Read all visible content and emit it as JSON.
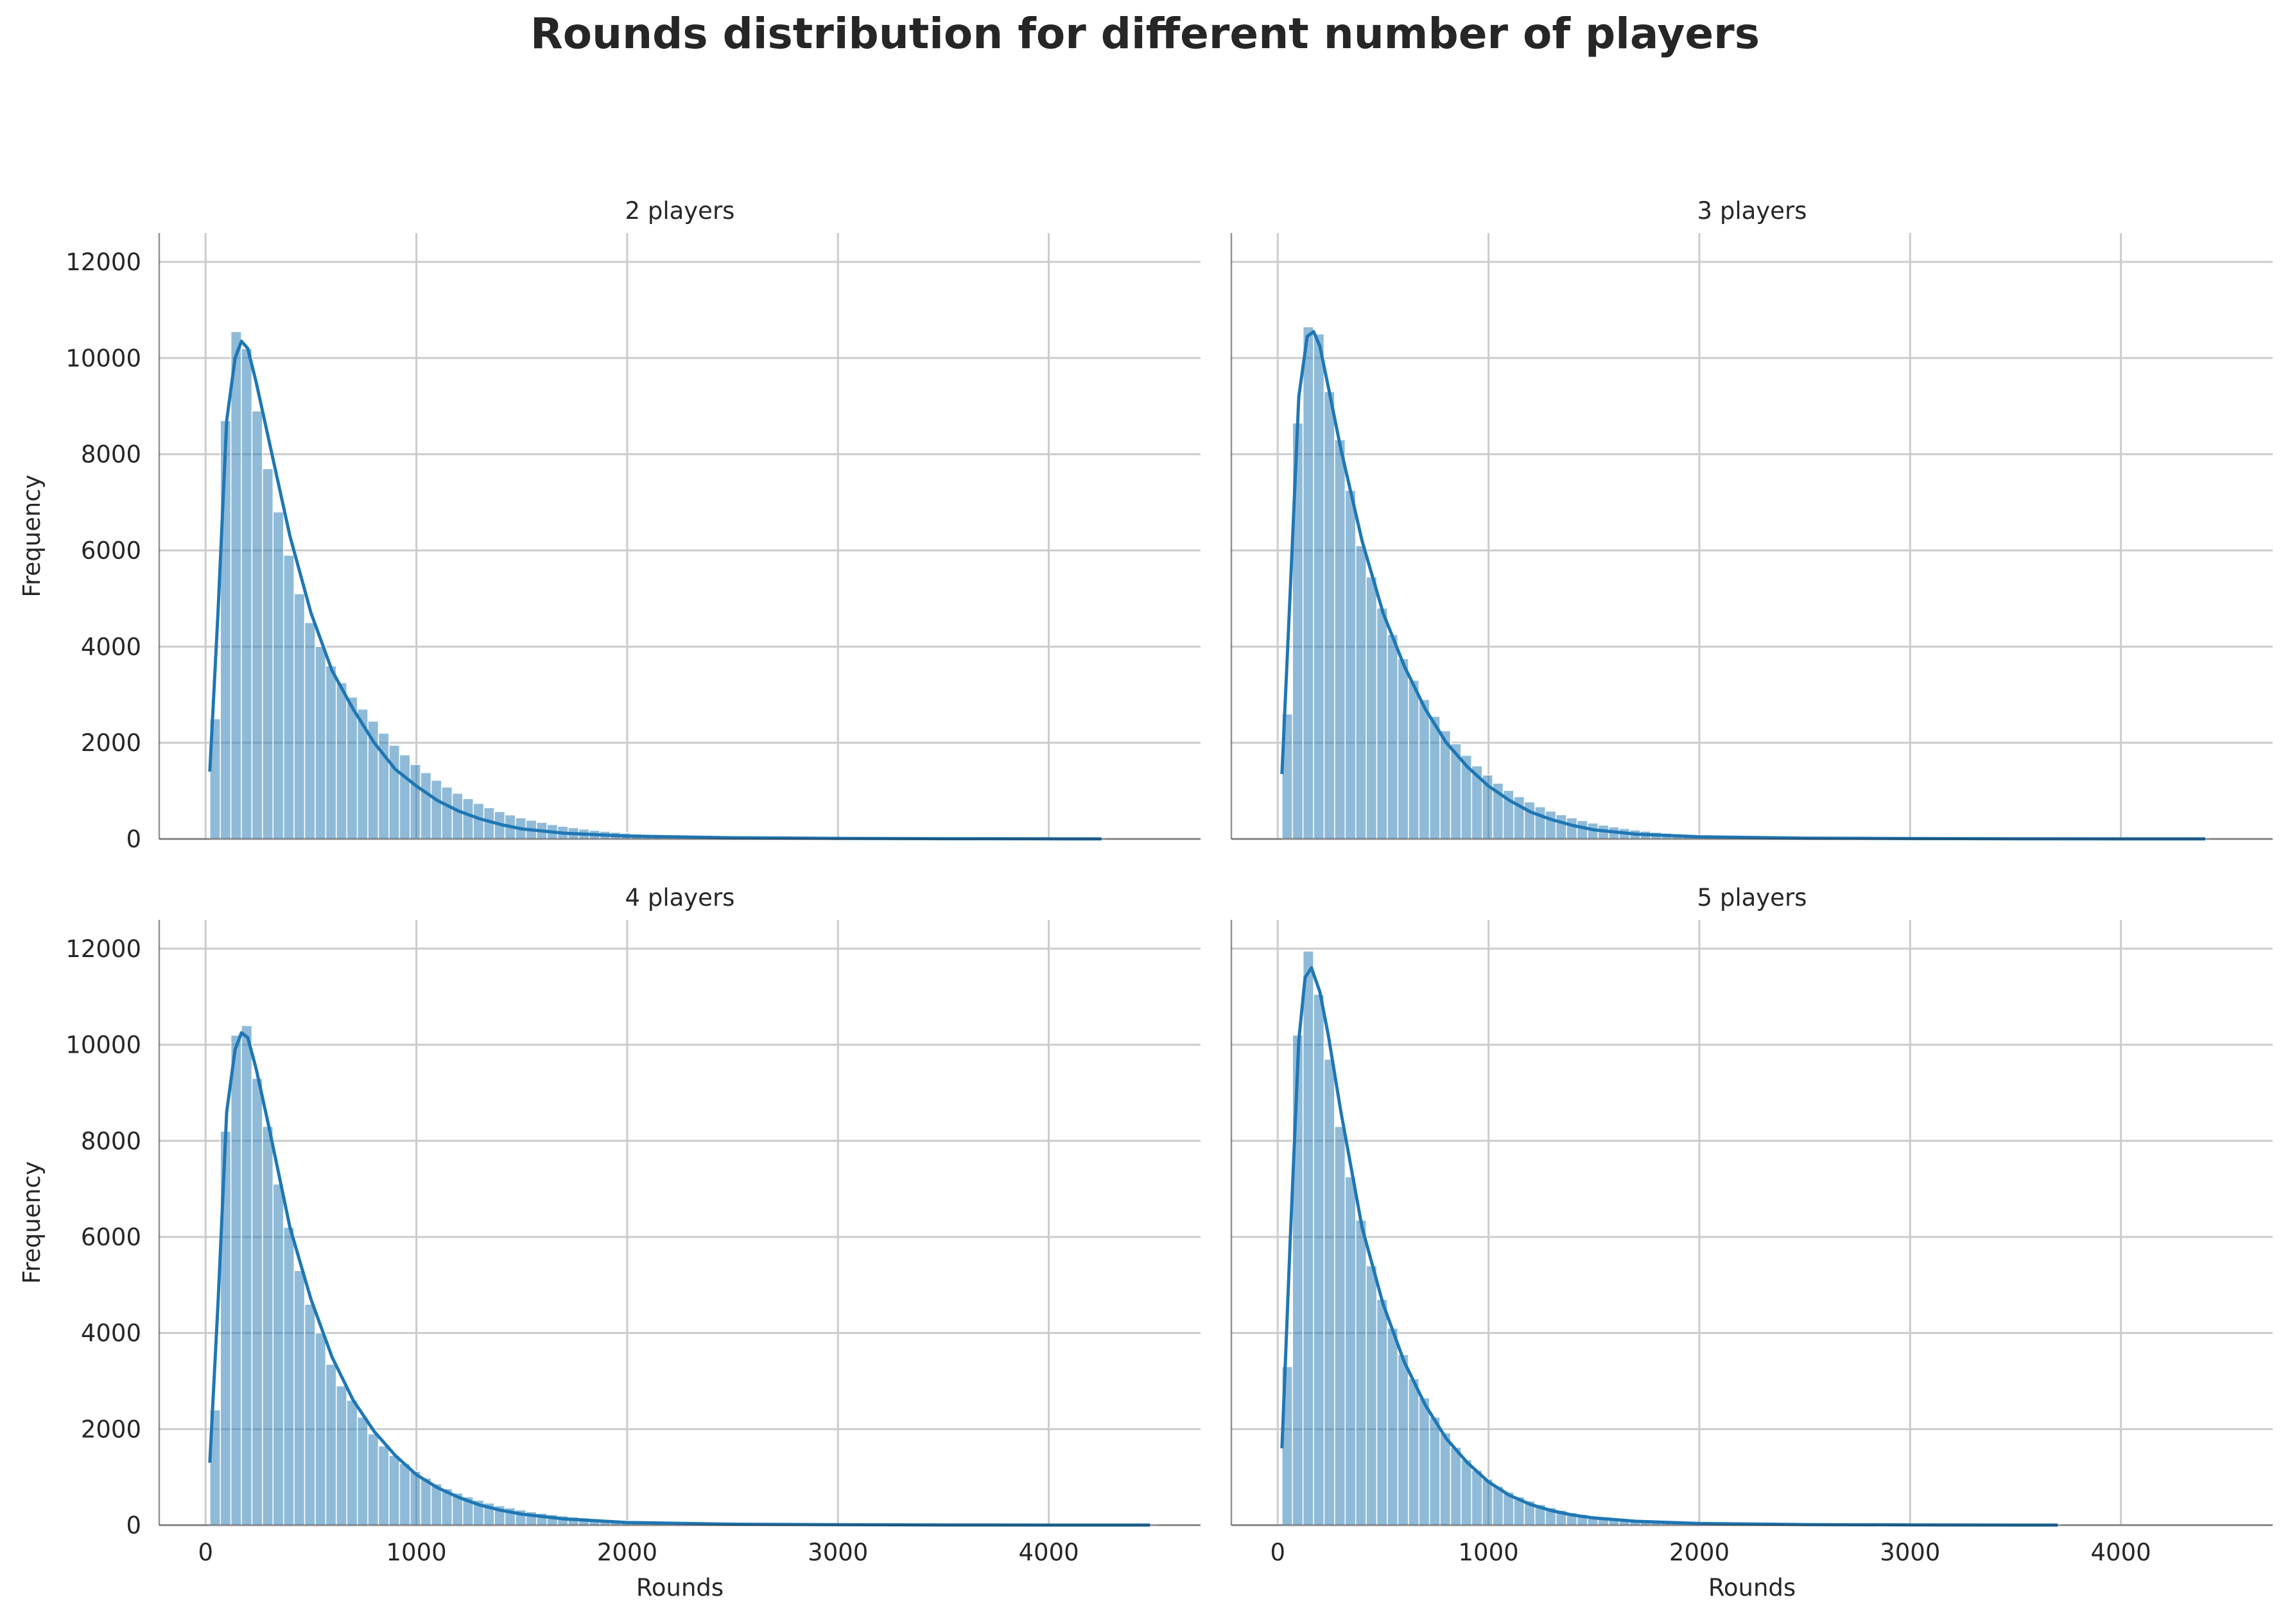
{
  "figure": {
    "title": "Rounds distribution for different number of players"
  },
  "colors": {
    "bar_fill": "#1f77b4",
    "bar_opacity": 0.5,
    "kde_line": "#1f77b4",
    "grid": "#cccccc",
    "axis": "#262626",
    "text": "#262626"
  },
  "chart_data": [
    {
      "type": "bar",
      "title": "2 players",
      "xlabel": "",
      "ylabel": "Frequency",
      "xlim": [
        -220,
        4720
      ],
      "ylim": [
        0,
        12600
      ],
      "xticks": [
        0,
        1000,
        2000,
        3000,
        4000
      ],
      "yticks": [
        0,
        2000,
        4000,
        6000,
        8000,
        10000,
        12000
      ],
      "grid": true,
      "bin_start": 20,
      "bin_width": 50,
      "bin_count": 85,
      "values": [
        2500,
        8700,
        10550,
        10200,
        8900,
        7700,
        6800,
        5900,
        5100,
        4500,
        4000,
        3600,
        3250,
        2950,
        2700,
        2450,
        2200,
        1950,
        1750,
        1550,
        1380,
        1220,
        1080,
        950,
        840,
        740,
        650,
        570,
        500,
        440,
        390,
        345,
        300,
        265,
        235,
        205,
        180,
        160,
        140,
        122,
        107,
        94,
        82,
        72,
        63,
        55,
        48,
        42,
        37,
        33,
        29,
        26,
        23,
        20,
        18,
        16,
        14,
        12,
        11,
        10,
        9,
        8,
        7,
        6,
        6,
        5,
        5,
        4,
        4,
        3,
        3,
        3,
        3,
        2,
        2,
        2,
        2,
        2,
        1,
        1,
        1,
        1,
        1,
        1,
        1
      ],
      "kde": {
        "x": [
          20,
          60,
          100,
          140,
          170,
          200,
          240,
          300,
          400,
          500,
          600,
          700,
          800,
          900,
          1000,
          1100,
          1200,
          1300,
          1400,
          1500,
          1700,
          2000,
          2500,
          3000,
          3500,
          4000,
          4250
        ],
        "y": [
          1400,
          4800,
          8700,
          10000,
          10350,
          10200,
          9500,
          8300,
          6300,
          4700,
          3500,
          2700,
          2000,
          1450,
          1100,
          800,
          580,
          420,
          300,
          210,
          120,
          60,
          25,
          12,
          6,
          3,
          2
        ]
      }
    },
    {
      "type": "bar",
      "title": "3 players",
      "xlabel": "",
      "ylabel": "",
      "xlim": [
        -220,
        4720
      ],
      "ylim": [
        0,
        12600
      ],
      "xticks": [
        0,
        1000,
        2000,
        3000,
        4000
      ],
      "yticks": [
        0,
        2000,
        4000,
        6000,
        8000,
        10000,
        12000
      ],
      "grid": true,
      "bin_start": 20,
      "bin_width": 50,
      "bin_count": 88,
      "values": [
        2600,
        8650,
        10650,
        10500,
        9300,
        8300,
        7250,
        6100,
        5450,
        4800,
        4250,
        3750,
        3300,
        2900,
        2550,
        2250,
        1980,
        1740,
        1520,
        1330,
        1160,
        1010,
        880,
        770,
        670,
        580,
        505,
        440,
        382,
        332,
        288,
        250,
        217,
        188,
        163,
        141,
        122,
        106,
        92,
        80,
        69,
        60,
        52,
        45,
        39,
        34,
        29,
        25,
        22,
        19,
        17,
        15,
        13,
        11,
        10,
        9,
        8,
        7,
        6,
        5,
        5,
        4,
        4,
        3,
        3,
        3,
        2,
        2,
        2,
        2,
        2,
        1,
        1,
        1,
        1,
        1,
        1,
        1,
        1,
        1,
        1,
        1,
        1,
        1,
        1,
        1,
        1,
        1
      ],
      "kde": {
        "x": [
          20,
          60,
          100,
          140,
          170,
          200,
          240,
          300,
          400,
          500,
          600,
          700,
          800,
          900,
          1000,
          1100,
          1200,
          1300,
          1400,
          1500,
          1700,
          2000,
          2500,
          3000,
          3500,
          4000,
          4400
        ],
        "y": [
          1350,
          5200,
          9200,
          10450,
          10550,
          10250,
          9400,
          8100,
          6200,
          4700,
          3600,
          2700,
          2000,
          1500,
          1100,
          800,
          560,
          400,
          280,
          190,
          100,
          45,
          18,
          8,
          4,
          2,
          1
        ]
      }
    },
    {
      "type": "bar",
      "title": "4 players",
      "xlabel": "Rounds",
      "ylabel": "Frequency",
      "xlim": [
        -220,
        4720
      ],
      "ylim": [
        0,
        12600
      ],
      "xticks": [
        0,
        1000,
        2000,
        3000,
        4000
      ],
      "yticks": [
        0,
        2000,
        4000,
        6000,
        8000,
        10000,
        12000
      ],
      "grid": true,
      "bin_start": 20,
      "bin_width": 50,
      "bin_count": 90,
      "values": [
        2400,
        8200,
        10200,
        10400,
        9300,
        8300,
        7100,
        6200,
        5300,
        4600,
        4000,
        3350,
        2900,
        2600,
        2250,
        1900,
        1650,
        1450,
        1280,
        1120,
        980,
        860,
        760,
        670,
        590,
        520,
        460,
        405,
        360,
        318,
        280,
        248,
        220,
        194,
        172,
        152,
        134,
        118,
        104,
        92,
        81,
        72,
        64,
        57,
        50,
        44,
        39,
        35,
        31,
        27,
        24,
        21,
        19,
        17,
        15,
        13,
        11,
        10,
        9,
        8,
        7,
        6,
        6,
        5,
        5,
        4,
        4,
        3,
        3,
        3,
        3,
        2,
        2,
        2,
        2,
        2,
        2,
        1,
        1,
        1,
        1,
        1,
        1,
        1,
        1,
        1,
        1,
        1,
        1,
        1
      ],
      "kde": {
        "x": [
          20,
          60,
          100,
          140,
          170,
          200,
          240,
          300,
          400,
          500,
          600,
          700,
          800,
          900,
          1000,
          1100,
          1200,
          1300,
          1400,
          1500,
          1700,
          2000,
          2500,
          3000,
          3500,
          4000,
          4480
        ],
        "y": [
          1300,
          4700,
          8600,
          9900,
          10250,
          10150,
          9500,
          8300,
          6200,
          4700,
          3500,
          2600,
          1950,
          1450,
          1050,
          780,
          580,
          420,
          310,
          230,
          130,
          55,
          20,
          9,
          4,
          2,
          1
        ]
      }
    },
    {
      "type": "bar",
      "title": "5 players",
      "xlabel": "Rounds",
      "ylabel": "",
      "xlim": [
        -220,
        4720
      ],
      "ylim": [
        0,
        12600
      ],
      "xticks": [
        0,
        1000,
        2000,
        3000,
        4000
      ],
      "yticks": [
        0,
        2000,
        4000,
        6000,
        8000,
        10000,
        12000
      ],
      "grid": true,
      "bin_start": 20,
      "bin_width": 50,
      "bin_count": 74,
      "values": [
        3300,
        10200,
        11950,
        11050,
        9700,
        8300,
        7250,
        6350,
        5400,
        4700,
        4100,
        3550,
        3050,
        2650,
        2250,
        1920,
        1620,
        1360,
        1140,
        960,
        810,
        690,
        590,
        505,
        430,
        365,
        310,
        262,
        222,
        188,
        160,
        136,
        116,
        99,
        84,
        72,
        61,
        52,
        44,
        37,
        31,
        26,
        22,
        19,
        16,
        14,
        12,
        10,
        9,
        8,
        7,
        6,
        5,
        5,
        4,
        4,
        3,
        3,
        3,
        2,
        2,
        2,
        2,
        2,
        1,
        1,
        1,
        1,
        1,
        1,
        1,
        1,
        1,
        1
      ],
      "kde": {
        "x": [
          20,
          60,
          100,
          130,
          160,
          200,
          240,
          300,
          400,
          500,
          600,
          700,
          800,
          900,
          1000,
          1100,
          1200,
          1300,
          1400,
          1500,
          1700,
          2000,
          2500,
          3000,
          3500,
          3700
        ],
        "y": [
          1600,
          6000,
          10100,
          11400,
          11600,
          11100,
          10200,
          8600,
          6200,
          4600,
          3400,
          2500,
          1800,
          1300,
          900,
          620,
          430,
          300,
          210,
          150,
          80,
          35,
          12,
          5,
          2,
          1
        ]
      }
    }
  ]
}
